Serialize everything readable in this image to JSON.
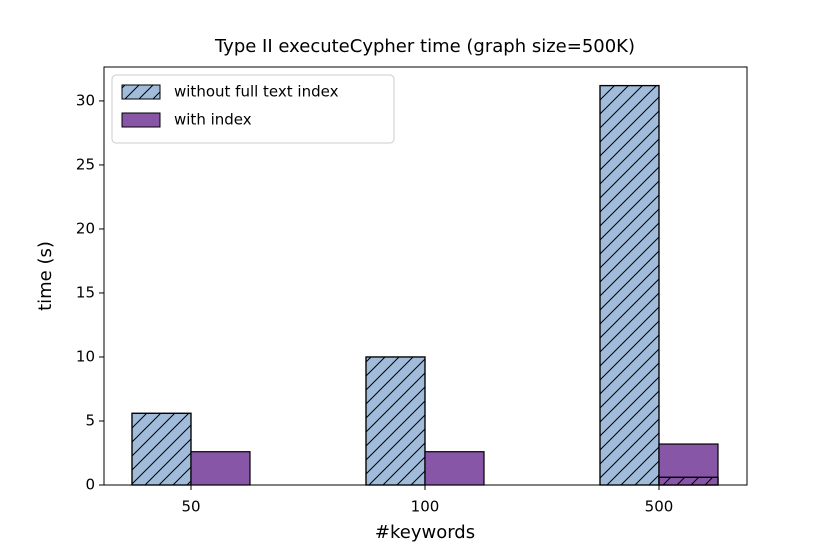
{
  "chart_data": {
    "type": "bar",
    "title": "Type II executeCypher time (graph size=500K)",
    "x_label": "#keywords",
    "y_label": "time (s)",
    "categories": [
      "50",
      "100",
      "500"
    ],
    "series": [
      {
        "name": "without full text index",
        "color": "#a1bbda",
        "hatch": true,
        "values": [
          5.6,
          10.0,
          31.2
        ]
      },
      {
        "name": "with index",
        "color": "#8856a7",
        "hatch": false,
        "values": [
          2.6,
          2.6,
          3.2
        ]
      },
      {
        "color": "#8856a7",
        "hatch": true,
        "values": [
          null,
          null,
          0.6
        ]
      }
    ],
    "ylim": [
      0,
      32.65
    ],
    "yticks": [
      0,
      5,
      10,
      15,
      20,
      25,
      30
    ],
    "legend": "upper left"
  }
}
